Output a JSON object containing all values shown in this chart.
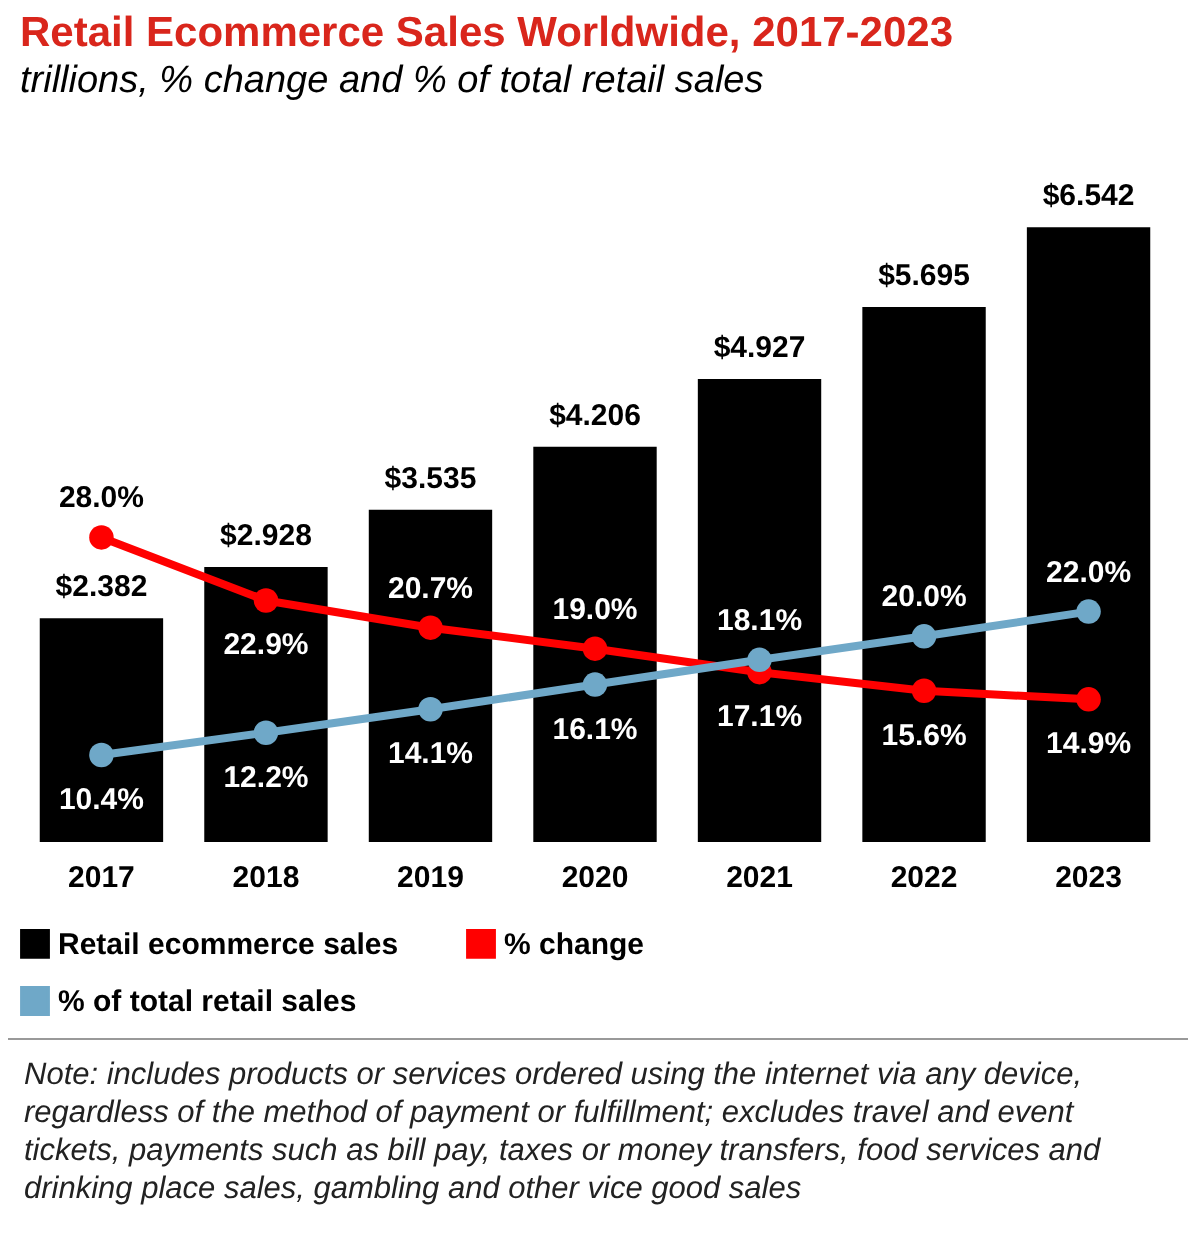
{
  "chart_data": {
    "type": "bar",
    "title": "Retail Ecommerce Sales Worldwide, 2017-2023",
    "subtitle": "trillions, % change and % of total retail sales",
    "categories": [
      "2017",
      "2018",
      "2019",
      "2020",
      "2021",
      "2022",
      "2023"
    ],
    "series": [
      {
        "name": "Retail ecommerce sales",
        "color": "#000000",
        "values": [
          2.382,
          2.928,
          3.535,
          4.206,
          4.927,
          5.695,
          6.542
        ],
        "value_labels": [
          "$2.382",
          "$2.928",
          "$3.535",
          "$4.206",
          "$4.927",
          "$5.695",
          "$6.542"
        ]
      },
      {
        "name": "% change",
        "type": "line",
        "axis": "y2",
        "color": "#ff0000",
        "values": [
          28.0,
          22.9,
          20.7,
          19.0,
          17.1,
          15.6,
          14.9
        ],
        "value_labels": [
          "28.0%",
          "22.9%",
          "20.7%",
          "19.0%",
          "17.1%",
          "15.6%",
          "14.9%"
        ]
      },
      {
        "name": "% of total retail sales",
        "type": "line",
        "axis": "y2",
        "color": "#6fa8c8",
        "values": [
          10.4,
          12.2,
          14.1,
          16.1,
          18.1,
          20.0,
          22.0
        ],
        "value_labels": [
          "10.4%",
          "12.2%",
          "14.1%",
          "16.1%",
          "18.1%",
          "20.0%",
          "22.0%"
        ]
      }
    ],
    "legend": "bottom",
    "marker": "circle",
    "line_style": "solid",
    "grid": false,
    "annotations": [
      "Note: includes products or services ordered using the internet via any device, regardless of the method of payment or fulfillment; excludes travel and event tickets, payments such as bill pay, taxes or money transfers, food services and drinking place sales, gambling and other vice good sales"
    ]
  }
}
